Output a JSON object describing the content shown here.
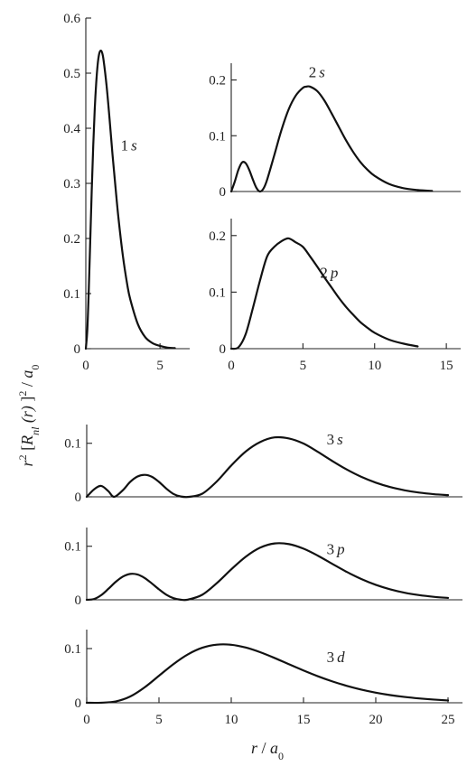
{
  "chart_data": [
    {
      "id": "1s",
      "type": "line",
      "label": "1s",
      "xlim": [
        0,
        7
      ],
      "ylim": [
        0,
        0.6
      ],
      "xticks": [
        0,
        5
      ],
      "yticks": [
        0,
        0.1,
        0.2,
        0.3,
        0.4,
        0.5,
        0.6
      ],
      "x": [
        0,
        0.1,
        0.2,
        0.3,
        0.4,
        0.5,
        0.6,
        0.7,
        0.8,
        0.9,
        1.0,
        1.1,
        1.2,
        1.4,
        1.6,
        1.8,
        2.0,
        2.2,
        2.5,
        2.8,
        3.0,
        3.5,
        4.0,
        4.5,
        5.0,
        5.5,
        6.0
      ],
      "y": [
        0,
        0.033,
        0.107,
        0.197,
        0.288,
        0.368,
        0.434,
        0.482,
        0.516,
        0.535,
        0.541,
        0.537,
        0.523,
        0.477,
        0.417,
        0.352,
        0.293,
        0.237,
        0.168,
        0.115,
        0.089,
        0.045,
        0.021,
        0.01,
        0.005,
        0.002,
        0.001
      ]
    },
    {
      "id": "2s",
      "type": "line",
      "label": "2s",
      "xlim": [
        0,
        16
      ],
      "ylim": [
        0,
        0.23
      ],
      "xticks": [],
      "yticks": [
        0,
        0.1,
        0.2
      ],
      "x": [
        0,
        0.25,
        0.5,
        0.75,
        1.0,
        1.25,
        1.5,
        1.75,
        2.0,
        2.25,
        2.5,
        3,
        3.5,
        4,
        4.5,
        5,
        5.24,
        5.5,
        6,
        6.5,
        7,
        7.5,
        8,
        8.5,
        9,
        9.5,
        10,
        11,
        12,
        13,
        14
      ],
      "y": [
        0,
        0.018,
        0.039,
        0.052,
        0.051,
        0.039,
        0.022,
        0.0068,
        0,
        0.0054,
        0.021,
        0.065,
        0.11,
        0.147,
        0.172,
        0.186,
        0.188,
        0.188,
        0.18,
        0.163,
        0.14,
        0.116,
        0.092,
        0.071,
        0.053,
        0.039,
        0.028,
        0.0135,
        0.006,
        0.0026,
        0.0011
      ]
    },
    {
      "id": "2p",
      "type": "line",
      "label": "2p",
      "xlim": [
        0,
        16
      ],
      "ylim": [
        0,
        0.23
      ],
      "xticks": [
        0,
        5,
        10,
        15
      ],
      "yticks": [
        0,
        0.1,
        0.2
      ],
      "x": [
        0,
        0.5,
        1.0,
        1.5,
        2.0,
        2.5,
        3.0,
        3.5,
        4.0,
        4.5,
        5.0,
        5.5,
        6.0,
        6.5,
        7.0,
        7.5,
        8.0,
        8.5,
        9.0,
        9.5,
        10,
        11,
        12,
        13
      ],
      "y": [
        0,
        0.0024,
        0.0253,
        0.0709,
        0.12,
        0.163,
        0.18,
        0.19,
        0.195,
        0.188,
        0.18,
        0.163,
        0.145,
        0.126,
        0.108,
        0.09,
        0.074,
        0.06,
        0.047,
        0.037,
        0.028,
        0.016,
        0.009,
        0.004
      ]
    },
    {
      "id": "3s",
      "type": "line",
      "label": "3s",
      "xlim": [
        0,
        26
      ],
      "ylim": [
        0,
        0.135
      ],
      "xticks": [],
      "yticks": [
        0,
        0.1
      ],
      "x": [
        0,
        0.5,
        1.0,
        1.5,
        1.9,
        2.5,
        3.0,
        3.5,
        4.0,
        4.5,
        5.0,
        5.5,
        6.0,
        6.5,
        7.1,
        8,
        9,
        10,
        11,
        12,
        13,
        14,
        15,
        16,
        17,
        18,
        19,
        20,
        21,
        22,
        23,
        24,
        25
      ],
      "y": [
        0,
        0.0138,
        0.0204,
        0.0105,
        0,
        0.0123,
        0.0277,
        0.0378,
        0.041,
        0.0376,
        0.0279,
        0.0155,
        0.0054,
        0.0006,
        0,
        0.0059,
        0.0287,
        0.0585,
        0.0846,
        0.1023,
        0.111,
        0.109,
        0.0995,
        0.0838,
        0.0668,
        0.0509,
        0.0373,
        0.0265,
        0.0182,
        0.0122,
        0.0079,
        0.005,
        0.0031
      ]
    },
    {
      "id": "3p",
      "type": "line",
      "label": "3p",
      "xlim": [
        0,
        26
      ],
      "ylim": [
        0,
        0.135
      ],
      "xticks": [],
      "yticks": [
        0,
        0.1
      ],
      "x": [
        0,
        0.5,
        1.0,
        1.5,
        2.0,
        2.5,
        3.0,
        3.5,
        4.0,
        4.5,
        5.0,
        5.5,
        6.0,
        6.5,
        7.0,
        8,
        9,
        10,
        11,
        12,
        13,
        14,
        15,
        16,
        17,
        18,
        19,
        20,
        21,
        22,
        23,
        24,
        25
      ],
      "y": [
        0,
        0.0013,
        0.0086,
        0.0205,
        0.0333,
        0.0433,
        0.0483,
        0.0473,
        0.0409,
        0.0307,
        0.0195,
        0.0096,
        0.003,
        0.0002,
        0.0003,
        0.0095,
        0.0311,
        0.0568,
        0.0804,
        0.0974,
        0.1053,
        0.104,
        0.0955,
        0.0823,
        0.067,
        0.052,
        0.0388,
        0.0279,
        0.0195,
        0.0132,
        0.0087,
        0.0056,
        0.0035
      ]
    },
    {
      "id": "3d",
      "type": "line",
      "label": "3d",
      "xlim": [
        0,
        26
      ],
      "ylim": [
        0,
        0.135
      ],
      "xticks": [
        0,
        5,
        10,
        15,
        20,
        25
      ],
      "yticks": [
        0,
        0.1
      ],
      "x": [
        0,
        1,
        2,
        3,
        4,
        5,
        6,
        7,
        8,
        9,
        10,
        11,
        12,
        13,
        14,
        15,
        16,
        17,
        18,
        19,
        20,
        21,
        22,
        23,
        24,
        25
      ],
      "y": [
        0,
        0.0001,
        0.0024,
        0.0114,
        0.0283,
        0.0498,
        0.0713,
        0.0893,
        0.1015,
        0.1072,
        0.107,
        0.1019,
        0.0933,
        0.0826,
        0.071,
        0.0596,
        0.0489,
        0.0394,
        0.0312,
        0.0243,
        0.0187,
        0.0142,
        0.0107,
        0.008,
        0.0059,
        0.0043
      ]
    }
  ],
  "labels": {
    "y_axis": {
      "r": "r",
      "sup2a": "2",
      "bracket_open": " [",
      "R": "R",
      "nl": "nl",
      "paren": " (r) ",
      "bracket_close": "]",
      "sup2b": "2",
      "slash": " / ",
      "a": "a",
      "sub0": "0"
    },
    "x_axis": {
      "r": "r",
      "slash": " / ",
      "a": "a",
      "sub0": "0"
    }
  }
}
